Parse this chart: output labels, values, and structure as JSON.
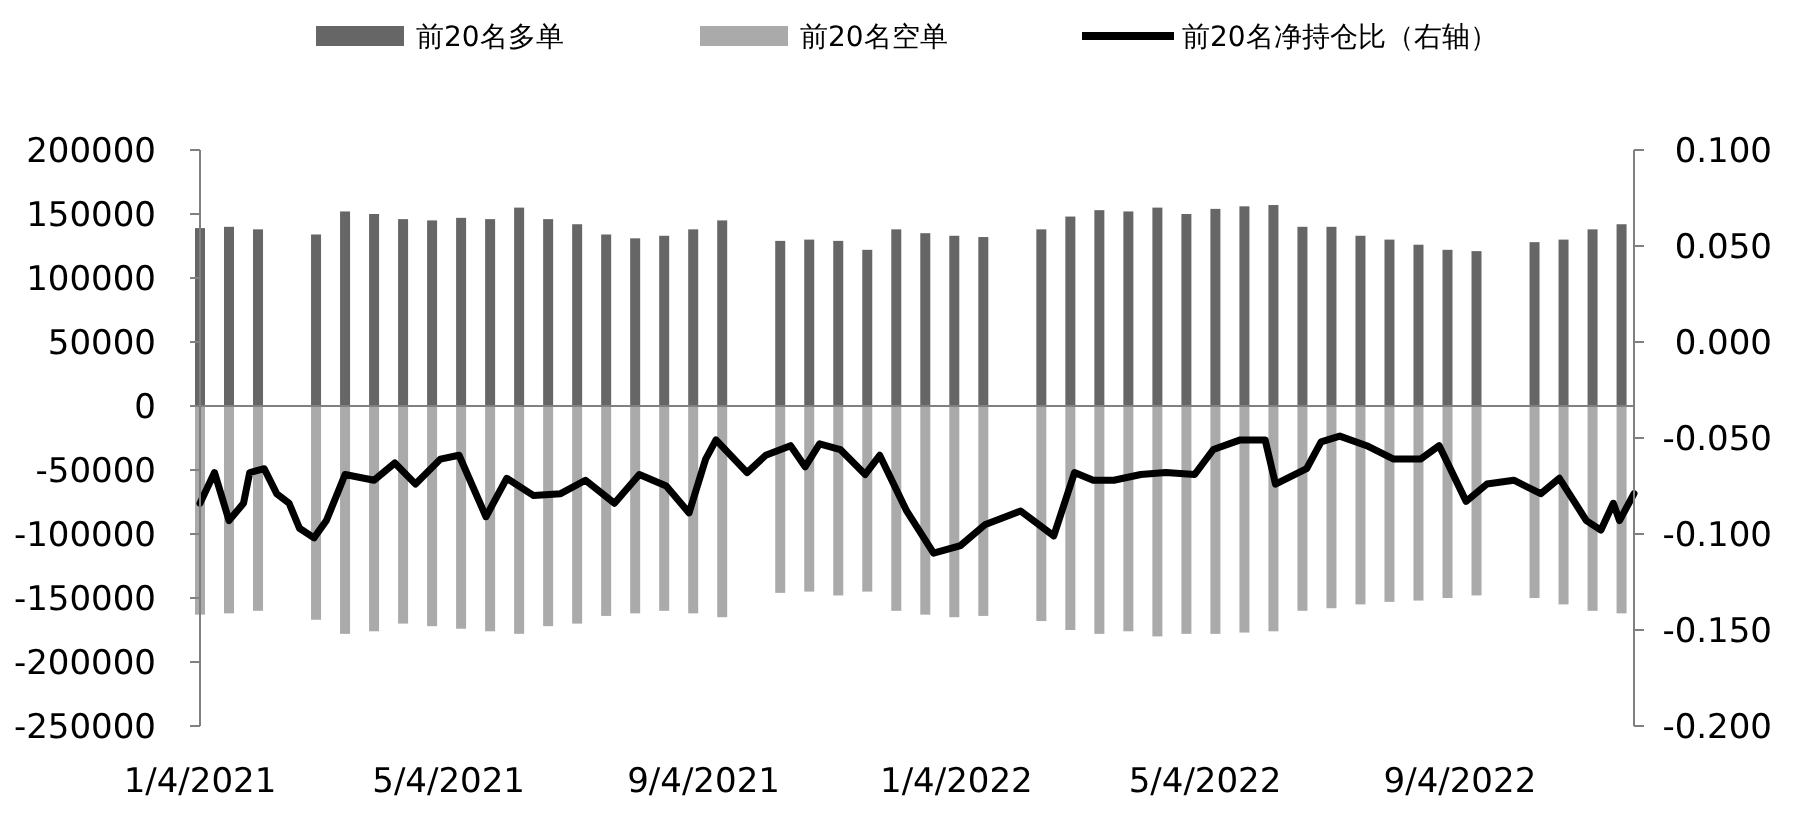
{
  "chart_data": {
    "type": "bar",
    "legend": "top",
    "stacked": true,
    "x": [
      "2021-01-04",
      "2021-01-18",
      "2021-02-01",
      "2021-03-01",
      "2021-03-15",
      "2021-03-29",
      "2021-04-12",
      "2021-04-26",
      "2021-05-10",
      "2021-05-24",
      "2021-06-07",
      "2021-06-21",
      "2021-07-05",
      "2021-07-19",
      "2021-08-02",
      "2021-08-16",
      "2021-08-30",
      "2021-09-13",
      "2021-10-11",
      "2021-10-25",
      "2021-11-08",
      "2021-11-22",
      "2021-12-06",
      "2021-12-20",
      "2022-01-03",
      "2022-01-17",
      "2022-02-14",
      "2022-02-28",
      "2022-03-14",
      "2022-03-28",
      "2022-04-11",
      "2022-04-25",
      "2022-05-09",
      "2022-05-23",
      "2022-06-06",
      "2022-06-20",
      "2022-07-04",
      "2022-07-18",
      "2022-08-01",
      "2022-08-15",
      "2022-08-29",
      "2022-09-12",
      "2022-10-10",
      "2022-10-24",
      "2022-11-07",
      "2022-11-21"
    ],
    "series": [
      {
        "name": "前20名多单",
        "color": "#666666",
        "values": [
          139000,
          140000,
          138000,
          134000,
          152000,
          150000,
          146000,
          145000,
          147000,
          146000,
          155000,
          146000,
          142000,
          134000,
          131000,
          133000,
          138000,
          145000,
          129000,
          130000,
          129000,
          122000,
          138000,
          135000,
          133000,
          132000,
          138000,
          148000,
          153000,
          152000,
          155000,
          150000,
          154000,
          156000,
          157000,
          140000,
          140000,
          133000,
          130000,
          126000,
          122000,
          121000,
          128000,
          130000,
          138000,
          142000
        ]
      },
      {
        "name": "前20名空单",
        "color": "#aaaaaa",
        "values": [
          -163000,
          -162000,
          -160000,
          -167000,
          -178000,
          -176000,
          -170000,
          -172000,
          -174000,
          -176000,
          -178000,
          -172000,
          -170000,
          -164000,
          -162000,
          -160000,
          -162000,
          -165000,
          -146000,
          -145000,
          -148000,
          -145000,
          -160000,
          -163000,
          -165000,
          -164000,
          -168000,
          -175000,
          -178000,
          -176000,
          -180000,
          -178000,
          -178000,
          -177000,
          -176000,
          -160000,
          -158000,
          -155000,
          -153000,
          -152000,
          -150000,
          -148000,
          -150000,
          -155000,
          -160000,
          -162000
        ]
      },
      {
        "name": "前20名净持仓比（右轴）",
        "type": "line",
        "axis": "y2",
        "color": "#000000",
        "x": [
          "2021-01-04",
          "2021-01-11",
          "2021-01-18",
          "2021-01-25",
          "2021-01-28",
          "2021-02-04",
          "2021-02-10",
          "2021-02-16",
          "2021-02-21",
          "2021-02-28",
          "2021-03-06",
          "2021-03-15",
          "2021-03-29",
          "2021-04-08",
          "2021-04-18",
          "2021-04-30",
          "2021-05-09",
          "2021-05-22",
          "2021-06-01",
          "2021-06-14",
          "2021-06-27",
          "2021-07-09",
          "2021-07-23",
          "2021-08-04",
          "2021-08-17",
          "2021-08-28",
          "2021-09-05",
          "2021-09-10",
          "2021-09-25",
          "2021-10-04",
          "2021-10-16",
          "2021-10-23",
          "2021-10-30",
          "2021-11-09",
          "2021-11-21",
          "2021-11-28",
          "2021-12-11",
          "2021-12-24",
          "2022-01-06",
          "2022-01-18",
          "2022-02-04",
          "2022-02-20",
          "2022-03-02",
          "2022-03-11",
          "2022-03-21",
          "2022-04-03",
          "2022-04-15",
          "2022-04-29",
          "2022-05-08",
          "2022-05-21",
          "2022-06-02",
          "2022-06-07",
          "2022-06-22",
          "2022-06-29",
          "2022-07-08",
          "2022-07-21",
          "2022-08-03",
          "2022-08-16",
          "2022-08-25",
          "2022-09-07",
          "2022-09-17",
          "2022-09-30",
          "2022-10-13",
          "2022-10-22",
          "2022-11-04",
          "2022-11-11",
          "2022-11-17",
          "2022-11-20",
          "2022-11-27"
        ],
        "values": [
          -0.084,
          -0.068,
          -0.093,
          -0.084,
          -0.068,
          -0.066,
          -0.079,
          -0.084,
          -0.097,
          -0.102,
          -0.093,
          -0.069,
          -0.072,
          -0.063,
          -0.074,
          -0.061,
          -0.059,
          -0.091,
          -0.071,
          -0.08,
          -0.079,
          -0.072,
          -0.084,
          -0.069,
          -0.075,
          -0.089,
          -0.061,
          -0.051,
          -0.068,
          -0.059,
          -0.054,
          -0.065,
          -0.053,
          -0.056,
          -0.069,
          -0.059,
          -0.088,
          -0.11,
          -0.106,
          -0.095,
          -0.088,
          -0.101,
          -0.068,
          -0.072,
          -0.072,
          -0.069,
          -0.068,
          -0.069,
          -0.056,
          -0.051,
          -0.051,
          -0.074,
          -0.066,
          -0.052,
          -0.049,
          -0.054,
          -0.061,
          -0.061,
          -0.054,
          -0.083,
          -0.074,
          -0.072,
          -0.079,
          -0.071,
          -0.093,
          -0.098,
          -0.084,
          -0.093,
          -0.079
        ]
      }
    ],
    "xlim": [
      "2021-01-04",
      "2022-11-27"
    ],
    "xticks": [
      {
        "value": "2021-01-04",
        "label": "1/4/2021"
      },
      {
        "value": "2021-05-04",
        "label": "5/4/2021"
      },
      {
        "value": "2021-09-04",
        "label": "9/4/2021"
      },
      {
        "value": "2022-01-04",
        "label": "1/4/2022"
      },
      {
        "value": "2022-05-04",
        "label": "5/4/2022"
      },
      {
        "value": "2022-09-04",
        "label": "9/4/2022"
      }
    ],
    "ylim": [
      -250000,
      200000
    ],
    "yticks": [
      -250000,
      -200000,
      -150000,
      -100000,
      -50000,
      0,
      50000,
      100000,
      150000,
      200000
    ],
    "y2lim": [
      -0.2,
      0.1
    ],
    "y2ticks": [
      {
        "value": -0.2,
        "label": "-0.200"
      },
      {
        "value": -0.15,
        "label": "-0.150"
      },
      {
        "value": -0.1,
        "label": "-0.100"
      },
      {
        "value": -0.05,
        "label": "-0.050"
      },
      {
        "value": 0,
        "label": "0.000"
      },
      {
        "value": 0.05,
        "label": "0.050"
      },
      {
        "value": 0.1,
        "label": "0.100"
      }
    ]
  }
}
